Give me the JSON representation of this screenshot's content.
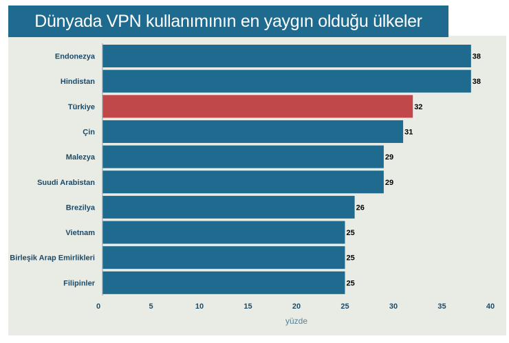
{
  "header": {
    "title": "Dünyada VPN kullanımının en yaygın olduğu ülkeler"
  },
  "colors": {
    "bar": "#1f6b8f",
    "highlight": "#c0474a",
    "title_bg": "#1f6b8f",
    "panel_bg": "#e9ebe5"
  },
  "chart_data": {
    "type": "bar",
    "orientation": "horizontal",
    "title": "Dünyada VPN kullanımının en yaygın olduğu ülkeler",
    "xlabel": "yüzde",
    "ylabel": "",
    "xlim": [
      0,
      40
    ],
    "xticks": [
      0,
      5,
      10,
      15,
      20,
      25,
      30,
      35,
      40
    ],
    "grid": false,
    "highlight_category": "Türkiye",
    "categories": [
      "Endonezya",
      "Hindistan",
      "Türkiye",
      "Çin",
      "Malezya",
      "Suudi Arabistan",
      "Brezilya",
      "Vietnam",
      "Birleşik Arap Emirlikleri",
      "Filipinler"
    ],
    "values": [
      38,
      38,
      32,
      31,
      29,
      29,
      26,
      25,
      25,
      25
    ]
  }
}
